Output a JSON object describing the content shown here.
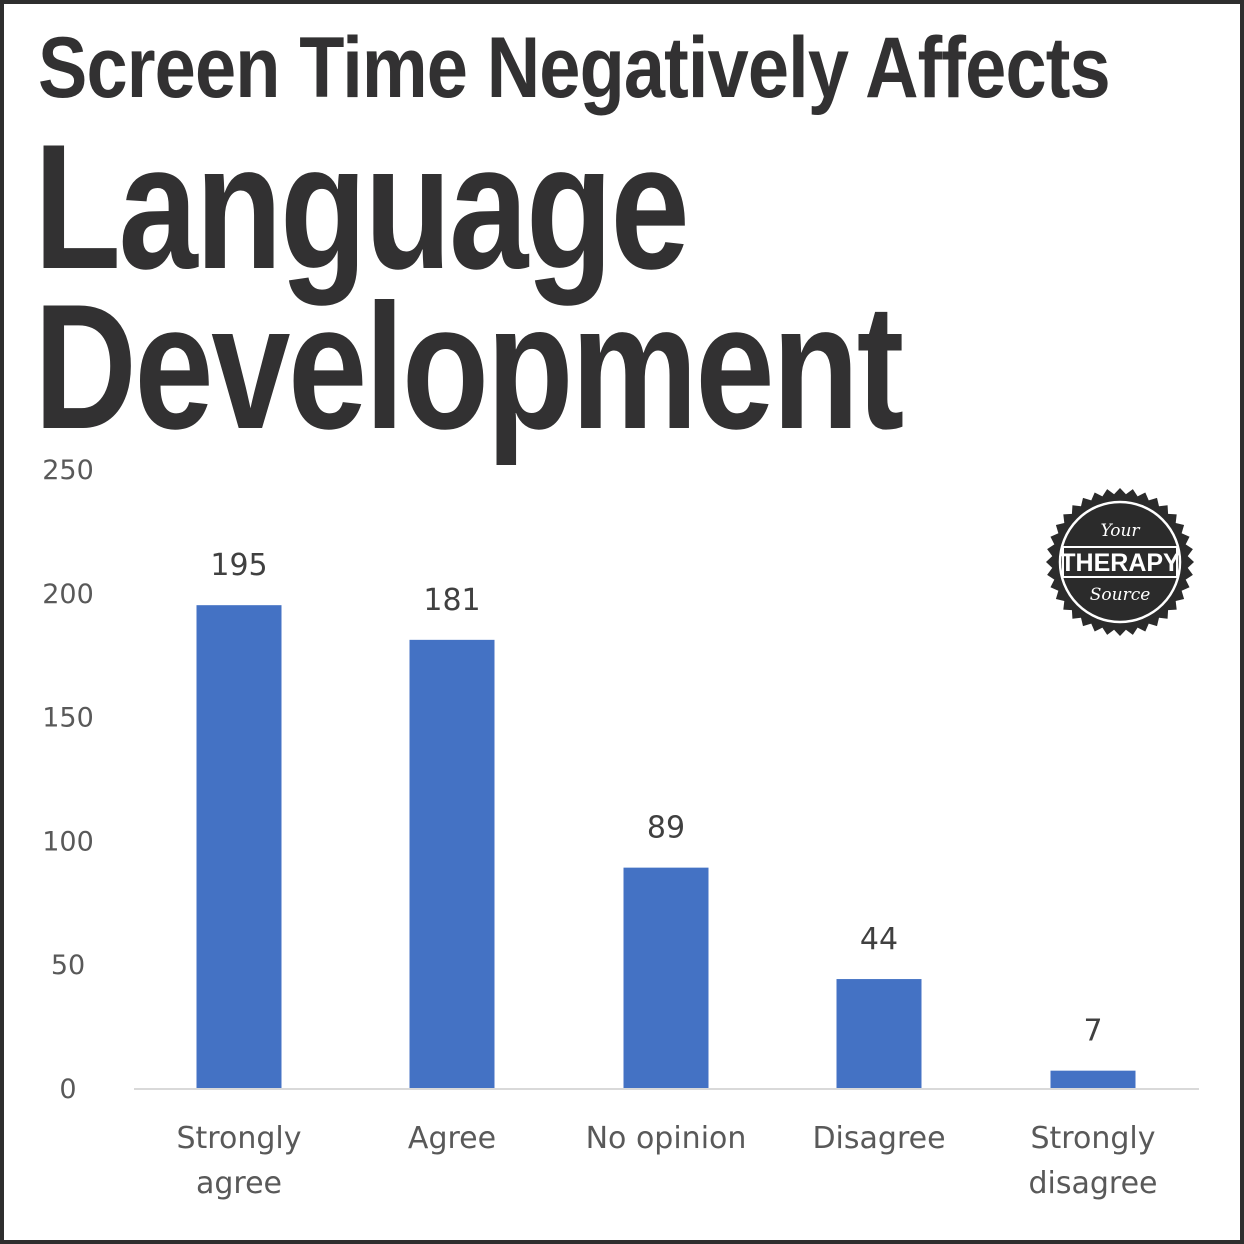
{
  "title": {
    "line1": "Screen Time Negatively Affects",
    "line2": "Language",
    "line3": "Development"
  },
  "badge": {
    "top": "Your",
    "middle": "THERAPY",
    "bottom": "Source"
  },
  "colors": {
    "bar": "#4472C4",
    "axis": "#d9d9d9",
    "title": "#323132"
  },
  "chart_data": {
    "type": "bar",
    "categories": [
      [
        "Strongly",
        "agree"
      ],
      [
        "Agree"
      ],
      [
        "No opinion"
      ],
      [
        "Disagree"
      ],
      [
        "Strongly",
        "disagree"
      ]
    ],
    "values": [
      195,
      181,
      89,
      44,
      7
    ],
    "data_labels": [
      "195",
      "181",
      "89",
      "44",
      "7"
    ],
    "yticks": [
      "0",
      "50",
      "100",
      "150",
      "200",
      "250"
    ],
    "ylim": [
      0,
      250
    ],
    "grid": false
  }
}
